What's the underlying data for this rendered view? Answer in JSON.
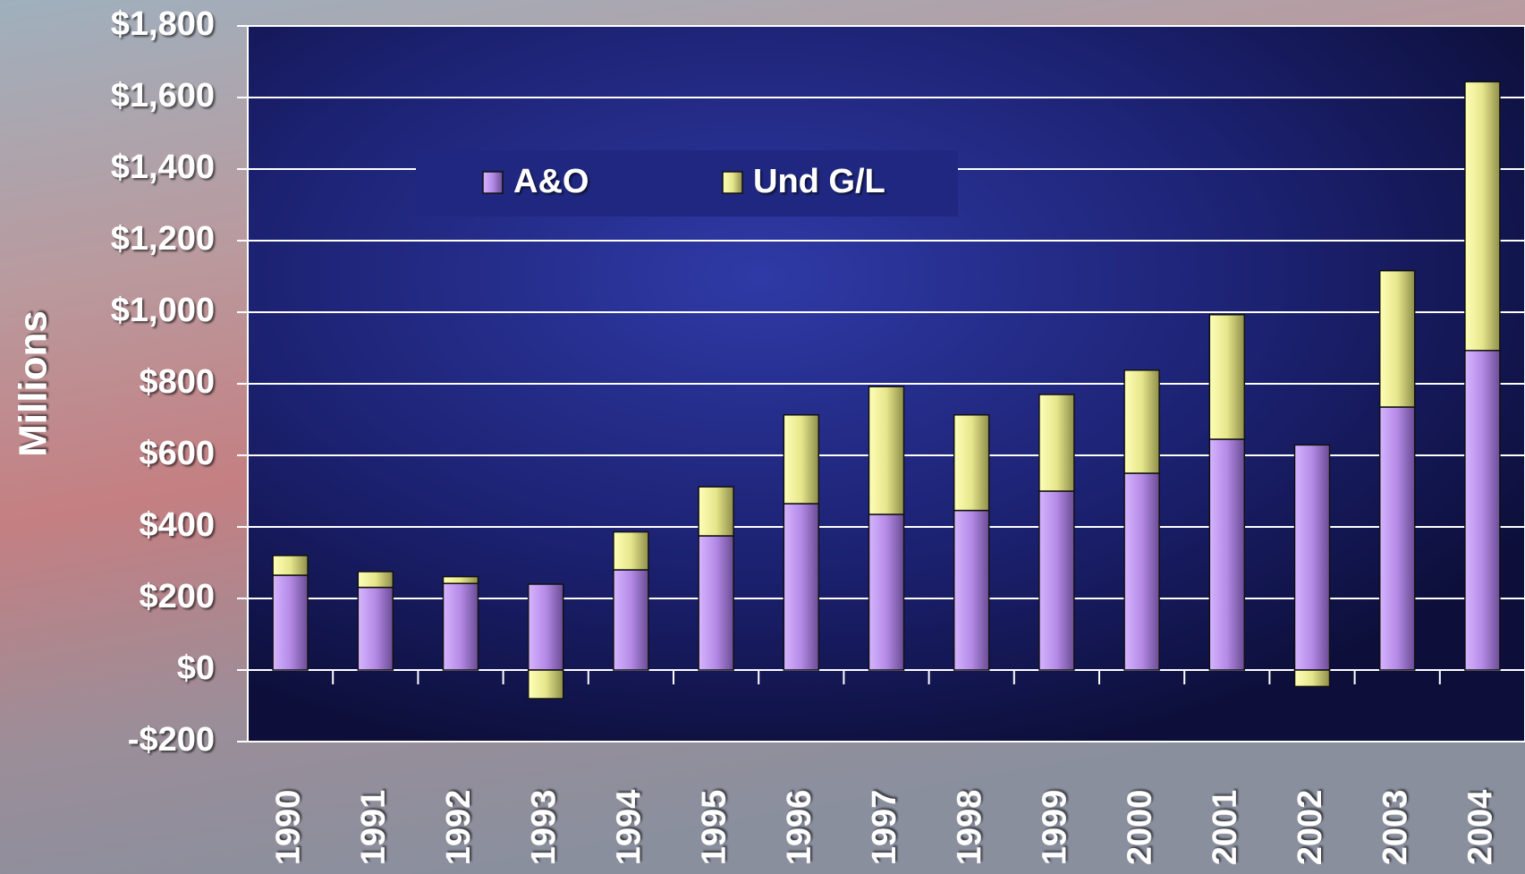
{
  "chart_data": {
    "type": "stacked_bar",
    "y_label": "Millions",
    "categories": [
      "1990",
      "1991",
      "1992",
      "1993",
      "1994",
      "1995",
      "1996",
      "1997",
      "1998",
      "1999",
      "2000",
      "2001",
      "2002",
      "2003",
      "2004"
    ],
    "series": [
      {
        "name": "A&O",
        "color": "#b48ae6",
        "values": [
          265,
          231,
          242,
          240,
          280,
          375,
          465,
          435,
          446,
          500,
          550,
          645,
          629,
          735,
          893
        ]
      },
      {
        "name": "Und G/L",
        "color": "#e6e68c",
        "values": [
          55,
          44,
          19,
          -80,
          106,
          137,
          248,
          357,
          267,
          270,
          288,
          348,
          -46,
          381,
          751
        ]
      }
    ],
    "ylim": [
      -200,
      1800
    ],
    "yticks": [
      {
        "value": -200,
        "label": "-$200"
      },
      {
        "value": 0,
        "label": "$0"
      },
      {
        "value": 200,
        "label": "$200"
      },
      {
        "value": 400,
        "label": "$400"
      },
      {
        "value": 600,
        "label": "$600"
      },
      {
        "value": 800,
        "label": "$800"
      },
      {
        "value": 1000,
        "label": "$1,000"
      },
      {
        "value": 1200,
        "label": "$1,200"
      },
      {
        "value": 1400,
        "label": "$1,400"
      },
      {
        "value": 1600,
        "label": "$1,600"
      },
      {
        "value": 1800,
        "label": "$1,800"
      }
    ],
    "grid": true,
    "legend": "top"
  }
}
